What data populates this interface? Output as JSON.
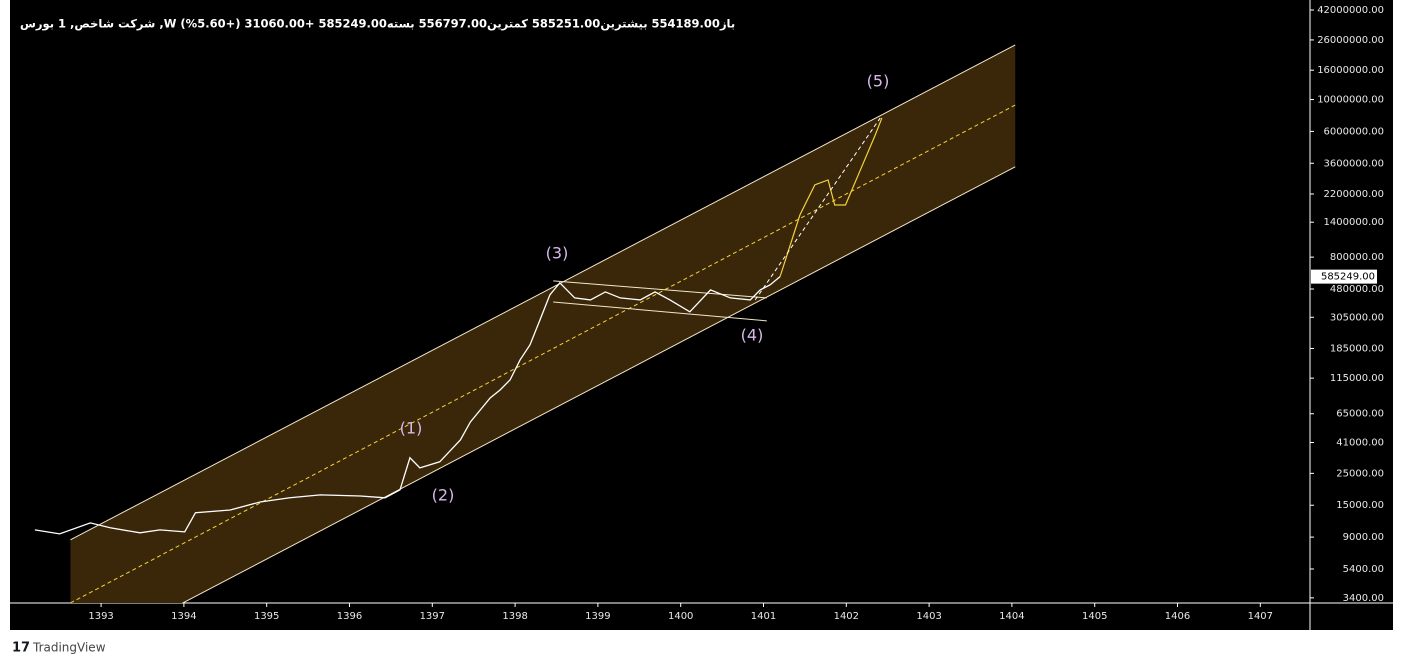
{
  "chart_data": {
    "type": "line",
    "title": "شاخص, 1 بورس ,Wشرکت",
    "legend_text": "شرکت شاخص, 1  بورس ,W  باز554189.00  بیشترین585251.00  کمترین556797.00  بسته585249.00  +31060.00 (+5.60%)",
    "color": "#ffffff",
    "log_scale": true,
    "x": [
      1392.2,
      1392.5,
      1392.87,
      1393.11,
      1393.47,
      1393.71,
      1394.01,
      1394.14,
      1394.56,
      1394.92,
      1395.28,
      1395.65,
      1396.13,
      1396.43,
      1396.61,
      1396.73,
      1396.85,
      1397.09,
      1397.34,
      1397.46,
      1397.7,
      1397.82,
      1397.94,
      1398.06,
      1398.18,
      1398.3,
      1398.42,
      1398.54,
      1398.72,
      1398.91,
      1399.09,
      1399.27,
      1399.51,
      1399.69,
      1399.87,
      1400.11,
      1400.36,
      1400.6,
      1400.84,
      1400.96,
      1401.08,
      1401.2
    ],
    "values": [
      10100,
      9480,
      11300,
      10450,
      9640,
      10100,
      9790,
      13300,
      13900,
      15800,
      16900,
      17700,
      17400,
      16900,
      19200,
      32100,
      27300,
      30100,
      42800,
      57000,
      83800,
      95300,
      112000,
      154000,
      196000,
      292000,
      437000,
      530000,
      416000,
      403000,
      458000,
      416000,
      403000,
      458000,
      403000,
      333000,
      473000,
      416000,
      403000,
      473000,
      513000,
      585249
    ],
    "last_price": {
      "value": 585249,
      "label": "585249.00"
    },
    "channel": {
      "color": "#3a2709",
      "line_color": "#f3e6c8",
      "x": [
        1392.63,
        1404.04
      ],
      "upper": [
        8610,
        23990000
      ],
      "mid": [
        3133,
        9160000
      ],
      "lower": [
        1219,
        3400000
      ]
    },
    "small_channel": {
      "x": [
        1398.46,
        1401.04
      ],
      "upper": [
        547000,
        416000
      ],
      "lower": [
        390000,
        288000
      ]
    },
    "projection": {
      "color": "#f5d33a",
      "x": [
        1401.2,
        1401.44,
        1401.62,
        1401.78,
        1401.86,
        1401.99,
        1402.17,
        1402.35,
        1402.43
      ],
      "values": [
        585249,
        1574000,
        2547000,
        2754000,
        1845000,
        1845000,
        3236000,
        5675000,
        7447000
      ],
      "dash_x": [
        1400.9,
        1402.41
      ],
      "dash_values": [
        403000,
        7447000
      ]
    },
    "wave_labels": [
      "(1)",
      "(2)",
      "(3)",
      "(4)",
      "(5)"
    ],
    "xlim": [
      1391.9,
      1407.6
    ],
    "xticks": [
      1393,
      1394,
      1395,
      1396,
      1397,
      1398,
      1399,
      1400,
      1401,
      1402,
      1403,
      1404,
      1405,
      1406,
      1407
    ],
    "ylim": [
      3130,
      49300000
    ],
    "yticks": [
      {
        "value": 42000000,
        "label": "42000000.00"
      },
      {
        "value": 26000000,
        "label": "26000000.00"
      },
      {
        "value": 16000000,
        "label": "16000000.00"
      },
      {
        "value": 10000000,
        "label": "10000000.00"
      },
      {
        "value": 6000000,
        "label": "6000000.00"
      },
      {
        "value": 3600000,
        "label": "3600000.00"
      },
      {
        "value": 2200000,
        "label": "2200000.00"
      },
      {
        "value": 1400000,
        "label": "1400000.00"
      },
      {
        "value": 800000,
        "label": "800000.00"
      },
      {
        "value": 480000,
        "label": "480000.00"
      },
      {
        "value": 305000,
        "label": "305000.00"
      },
      {
        "value": 185000,
        "label": "185000.00"
      },
      {
        "value": 115000,
        "label": "115000.00"
      },
      {
        "value": 65000,
        "label": "65000.00"
      },
      {
        "value": 41000,
        "label": "41000.00"
      },
      {
        "value": 25000,
        "label": "25000.00"
      },
      {
        "value": 15000,
        "label": "15000.00"
      },
      {
        "value": 9000,
        "label": "9000.00"
      },
      {
        "value": 5400,
        "label": "5400.00"
      },
      {
        "value": 3400,
        "label": "3400.00"
      }
    ],
    "footer": "TradingView"
  }
}
